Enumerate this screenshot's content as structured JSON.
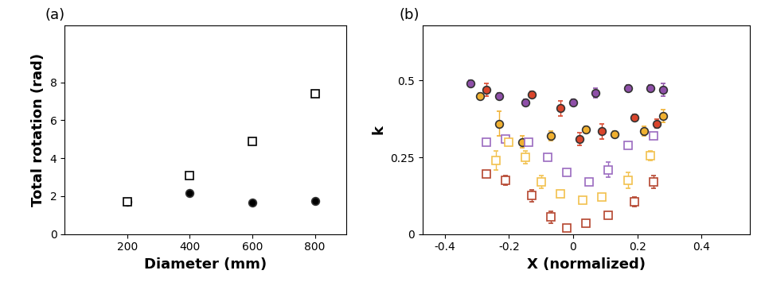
{
  "chart_data": [
    {
      "type": "scatter",
      "title": "(a)",
      "x_label": "Diameter (mm)",
      "y_label": "Total rotation (rad)",
      "xlim": [
        0,
        900
      ],
      "xticks": [
        200,
        400,
        600,
        800
      ],
      "ylim": [
        0,
        11
      ],
      "yticks": [
        0,
        2,
        4,
        6,
        8
      ],
      "series": [
        {
          "color": "#000000",
          "marker": "filled_circle",
          "x": [
            200,
            400,
            600,
            800
          ],
          "values": [
            1.7,
            2.15,
            1.65,
            1.75
          ]
        },
        {
          "color": "#000000",
          "marker": "open_square",
          "x": [
            200,
            400,
            600,
            800
          ],
          "values": [
            1.7,
            3.1,
            4.9,
            7.4
          ]
        }
      ]
    },
    {
      "type": "scatter",
      "title": "(b)",
      "x_label": "X (normalized)",
      "y_label": "k",
      "xlim": [
        -0.47,
        0.55
      ],
      "xticks": [
        -0.4,
        -0.2,
        0,
        0.2,
        0.4
      ],
      "ylim": [
        0,
        0.68
      ],
      "yticks": [
        0,
        0.25,
        0.5
      ],
      "series": [
        {
          "color": "#8e4fa8",
          "marker": "filled_circle",
          "x": [
            -0.32,
            -0.23,
            -0.15,
            0.0,
            0.07,
            0.17,
            0.24,
            0.28
          ],
          "values": [
            0.49,
            0.45,
            0.43,
            0.43,
            0.46,
            0.475,
            0.475,
            0.47
          ],
          "errors": [
            0.01,
            0.01,
            0.01,
            0.01,
            0.015,
            0.01,
            0.01,
            0.02
          ]
        },
        {
          "color": "#d9452b",
          "marker": "filled_circle",
          "x": [
            -0.27,
            -0.13,
            -0.04,
            0.02,
            0.09,
            0.19,
            0.26
          ],
          "values": [
            0.47,
            0.455,
            0.41,
            0.31,
            0.335,
            0.38,
            0.36
          ],
          "errors": [
            0.02,
            0.01,
            0.025,
            0.02,
            0.025,
            0.01,
            0.015
          ]
        },
        {
          "color": "#f0b030",
          "marker": "filled_circle",
          "x": [
            -0.29,
            -0.23,
            -0.16,
            -0.07,
            0.04,
            0.13,
            0.22,
            0.28
          ],
          "values": [
            0.45,
            0.36,
            0.3,
            0.32,
            0.34,
            0.325,
            0.335,
            0.385
          ],
          "errors": [
            0.01,
            0.04,
            0.02,
            0.015,
            0.01,
            0.01,
            0.015,
            0.02
          ]
        },
        {
          "color": "#9b6bc0",
          "marker": "open_square",
          "x": [
            -0.27,
            -0.21,
            -0.14,
            -0.08,
            -0.02,
            0.05,
            0.11,
            0.17,
            0.25
          ],
          "values": [
            0.3,
            0.31,
            0.3,
            0.25,
            0.2,
            0.17,
            0.21,
            0.29,
            0.32
          ],
          "errors": [
            0.01,
            0.01,
            0.01,
            0.01,
            0.01,
            0.01,
            0.025,
            0.01,
            0.01
          ]
        },
        {
          "color": "#f2c14e",
          "marker": "open_square",
          "x": [
            -0.24,
            -0.2,
            -0.15,
            -0.1,
            -0.04,
            0.03,
            0.09,
            0.17,
            0.24
          ],
          "values": [
            0.24,
            0.3,
            0.25,
            0.17,
            0.13,
            0.11,
            0.12,
            0.175,
            0.255
          ],
          "errors": [
            0.03,
            0.01,
            0.02,
            0.02,
            0.01,
            0.01,
            0.01,
            0.025,
            0.015
          ]
        },
        {
          "color": "#b5452f",
          "marker": "open_square",
          "x": [
            -0.27,
            -0.21,
            -0.13,
            -0.07,
            -0.02,
            0.04,
            0.11,
            0.19,
            0.25
          ],
          "values": [
            0.195,
            0.175,
            0.125,
            0.055,
            0.02,
            0.035,
            0.06,
            0.105,
            0.17
          ],
          "errors": [
            0.01,
            0.015,
            0.02,
            0.02,
            0.005,
            0.01,
            0.01,
            0.015,
            0.02
          ]
        }
      ]
    }
  ]
}
